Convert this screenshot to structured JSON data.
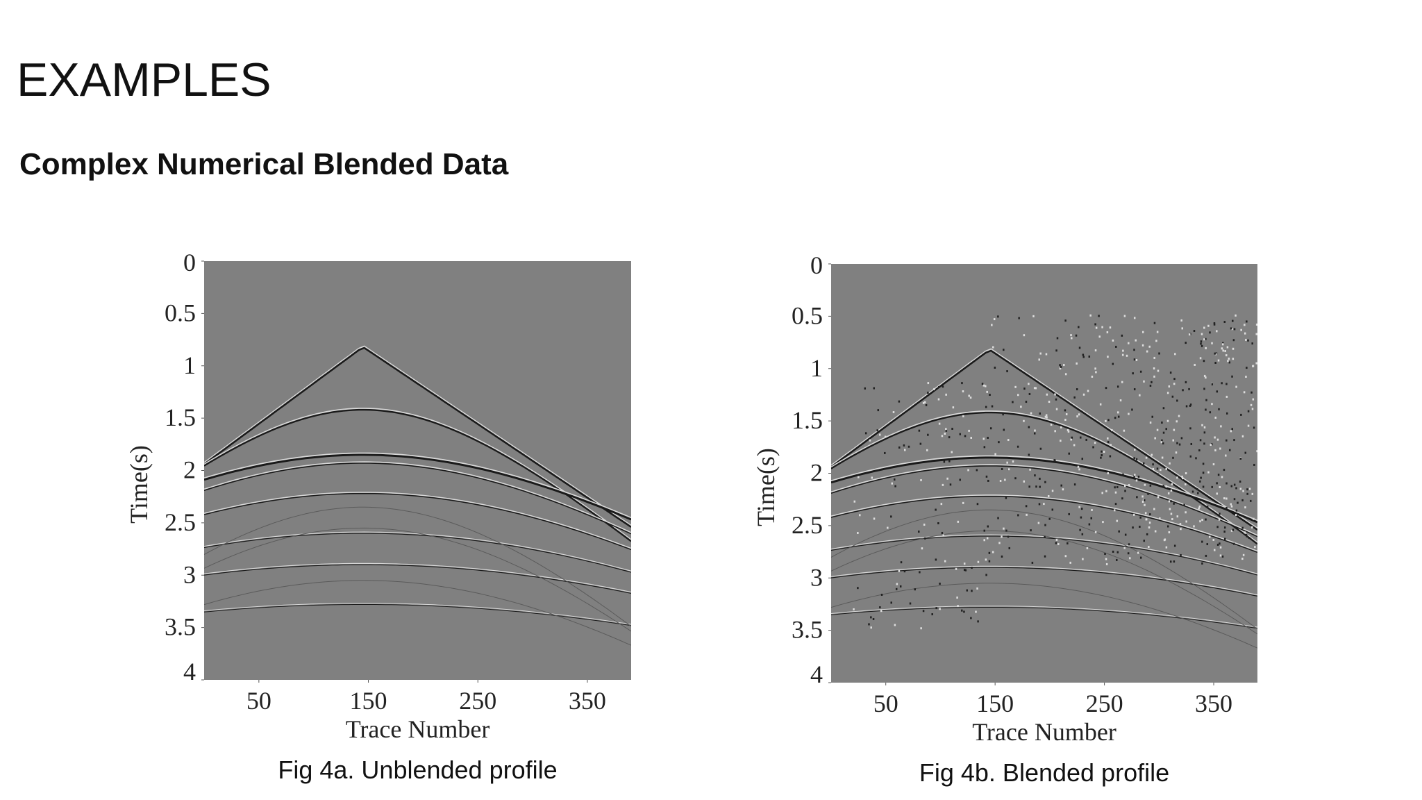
{
  "header": {
    "title": "EXAMPLES",
    "subtitle": "Complex Numerical Blended Data"
  },
  "figures": [
    {
      "caption": "Fig 4a. Unblended profile",
      "xlabel": "Trace Number",
      "ylabel": "Time(s)",
      "xlim": [
        0,
        390
      ],
      "xticks": [
        50,
        150,
        250,
        350
      ],
      "ylim": [
        0,
        4
      ],
      "yticks": [
        0,
        0.5,
        1,
        1.5,
        2,
        2.5,
        3,
        3.5,
        4
      ]
    },
    {
      "caption": "Fig 4b. Blended profile",
      "xlabel": "Trace Number",
      "ylabel": "Time(s)",
      "xlim": [
        0,
        390
      ],
      "xticks": [
        50,
        150,
        250,
        350
      ],
      "ylim": [
        0,
        4
      ],
      "yticks": [
        0,
        0.5,
        1,
        1.5,
        2,
        2.5,
        3,
        3.5,
        4
      ]
    }
  ]
}
